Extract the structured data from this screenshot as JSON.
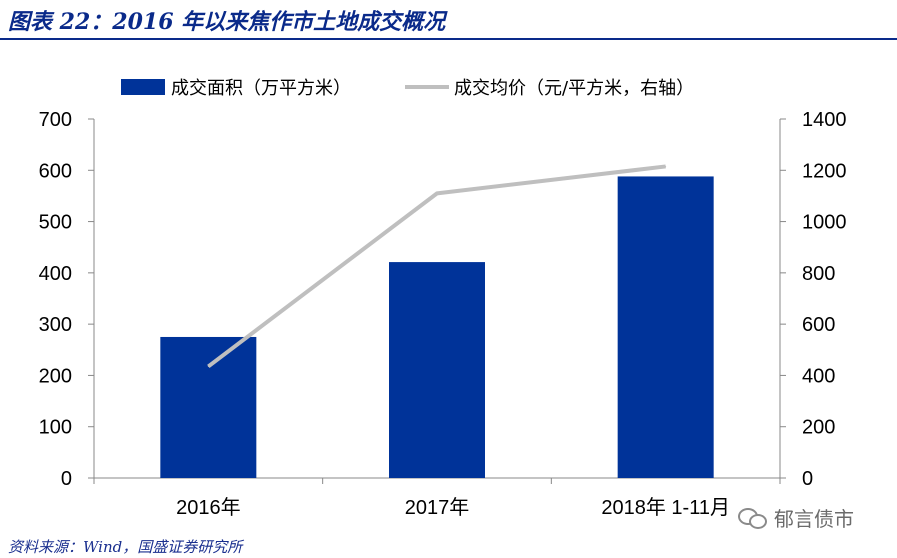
{
  "header": {
    "title": "图表 22：2016 年以来焦作市土地成交概况"
  },
  "footer": {
    "source": "资料来源：Wind，国盛证券研究所",
    "watermark": "郁言债市"
  },
  "chart_data": {
    "type": "bar",
    "categories": [
      "2016年",
      "2017年",
      "2018年 1-11月"
    ],
    "series": [
      {
        "name": "成交面积（万平方米）",
        "type": "bar",
        "axis": "left",
        "color": "#003399",
        "values": [
          275,
          421,
          588
        ]
      },
      {
        "name": "成交均价（元/平方米，右轴）",
        "type": "line",
        "axis": "right",
        "color": "#bfbfbf",
        "values": [
          435,
          1110,
          1215
        ]
      }
    ],
    "y_left": {
      "min": 0,
      "max": 700,
      "ticks": [
        0,
        100,
        200,
        300,
        400,
        500,
        600,
        700
      ]
    },
    "y_right": {
      "min": 0,
      "max": 1400,
      "ticks": [
        0,
        200,
        400,
        600,
        800,
        1000,
        1200,
        1400
      ]
    },
    "legend_position": "top",
    "grid": false
  }
}
